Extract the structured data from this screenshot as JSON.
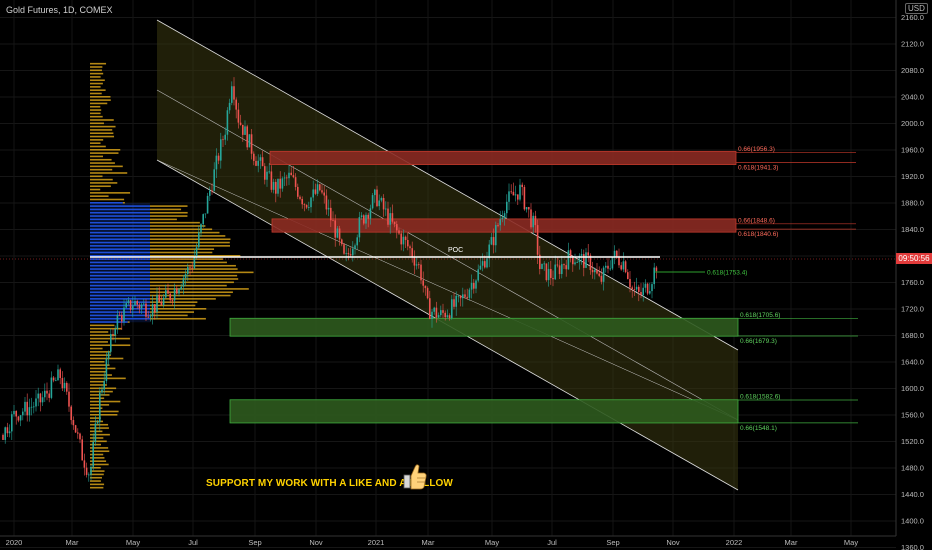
{
  "header": {
    "symbol_title": "Gold Futures, 1D, COMEX",
    "currency": "USD",
    "current_price_tag": "09:50:56"
  },
  "promo": {
    "text": "SUPPORT MY WORK WITH A LIKE AND A FOLLOW",
    "icon": "thumbs-up-icon"
  },
  "colors": {
    "background": "#000000",
    "candle_up": "#26a69a",
    "candle_down": "#ef5350",
    "resistance_zone": "#8b2a22",
    "support_zone": "#2e5a1e",
    "channel_fill": "#3a3810",
    "profile_blue": "#1e4fd8",
    "profile_gold": "#d4a017",
    "poc_line": "#ffffff"
  },
  "chart_data": {
    "type": "candlestick",
    "y_axis_labels": [
      "2160.0",
      "2120.0",
      "2080.0",
      "2040.0",
      "2000.0",
      "1960.0",
      "1920.0",
      "1880.0",
      "1840.0",
      "1800.0",
      "1760.0",
      "1720.0",
      "1680.0",
      "1640.0",
      "1600.0",
      "1560.0",
      "1520.0",
      "1480.0",
      "1440.0",
      "1400.0",
      "1360.0"
    ],
    "x_axis_labels": [
      "2020",
      "Mar",
      "May",
      "Jul",
      "Sep",
      "Nov",
      "2021",
      "Mar",
      "May",
      "Jul",
      "Sep",
      "Nov",
      "2022",
      "Mar",
      "May"
    ],
    "ylim": [
      1350,
      2175
    ],
    "poc_label": "POC",
    "poc_price": 1775,
    "current_price": 1775,
    "zones": [
      {
        "kind": "resistance",
        "from": 1938,
        "to": 1958,
        "labels": [
          "0.66(1956.3)",
          "0.618(1941.3)"
        ],
        "label_prices": [
          1956.3,
          1941.3
        ]
      },
      {
        "kind": "resistance",
        "from": 1836,
        "to": 1856,
        "labels": [
          "0.66(1848.6)",
          "0.618(1840.6)"
        ],
        "label_prices": [
          1848.6,
          1840.6
        ]
      },
      {
        "kind": "support",
        "from": 1679,
        "to": 1706,
        "labels": [
          "0.618(1705.6)",
          "0.66(1679.3)"
        ],
        "label_prices": [
          1705.6,
          1679.3
        ]
      },
      {
        "kind": "support",
        "from": 1548,
        "to": 1583,
        "labels": [
          "0.618(1582.6)",
          "0.66(1548.1)"
        ],
        "label_prices": [
          1582.6,
          1548.1
        ]
      }
    ],
    "level_line": {
      "label": "0.618(1753.4)",
      "price": 1753.4
    },
    "candles_summary": [
      {
        "date": "2020-01",
        "close": 1560
      },
      {
        "date": "2020-03",
        "close": 1480
      },
      {
        "date": "2020-05",
        "close": 1730
      },
      {
        "date": "2020-07",
        "close": 1960
      },
      {
        "date": "2020-08",
        "close": 2070
      },
      {
        "date": "2020-09",
        "close": 1900
      },
      {
        "date": "2020-11",
        "close": 1810
      },
      {
        "date": "2021-01",
        "close": 1850
      },
      {
        "date": "2021-03",
        "close": 1690
      },
      {
        "date": "2021-05",
        "close": 1900
      },
      {
        "date": "2021-06",
        "close": 1770
      },
      {
        "date": "2021-08",
        "close": 1800
      },
      {
        "date": "2021-09",
        "close": 1750
      },
      {
        "date": "2021-10",
        "close": 1775
      }
    ]
  }
}
